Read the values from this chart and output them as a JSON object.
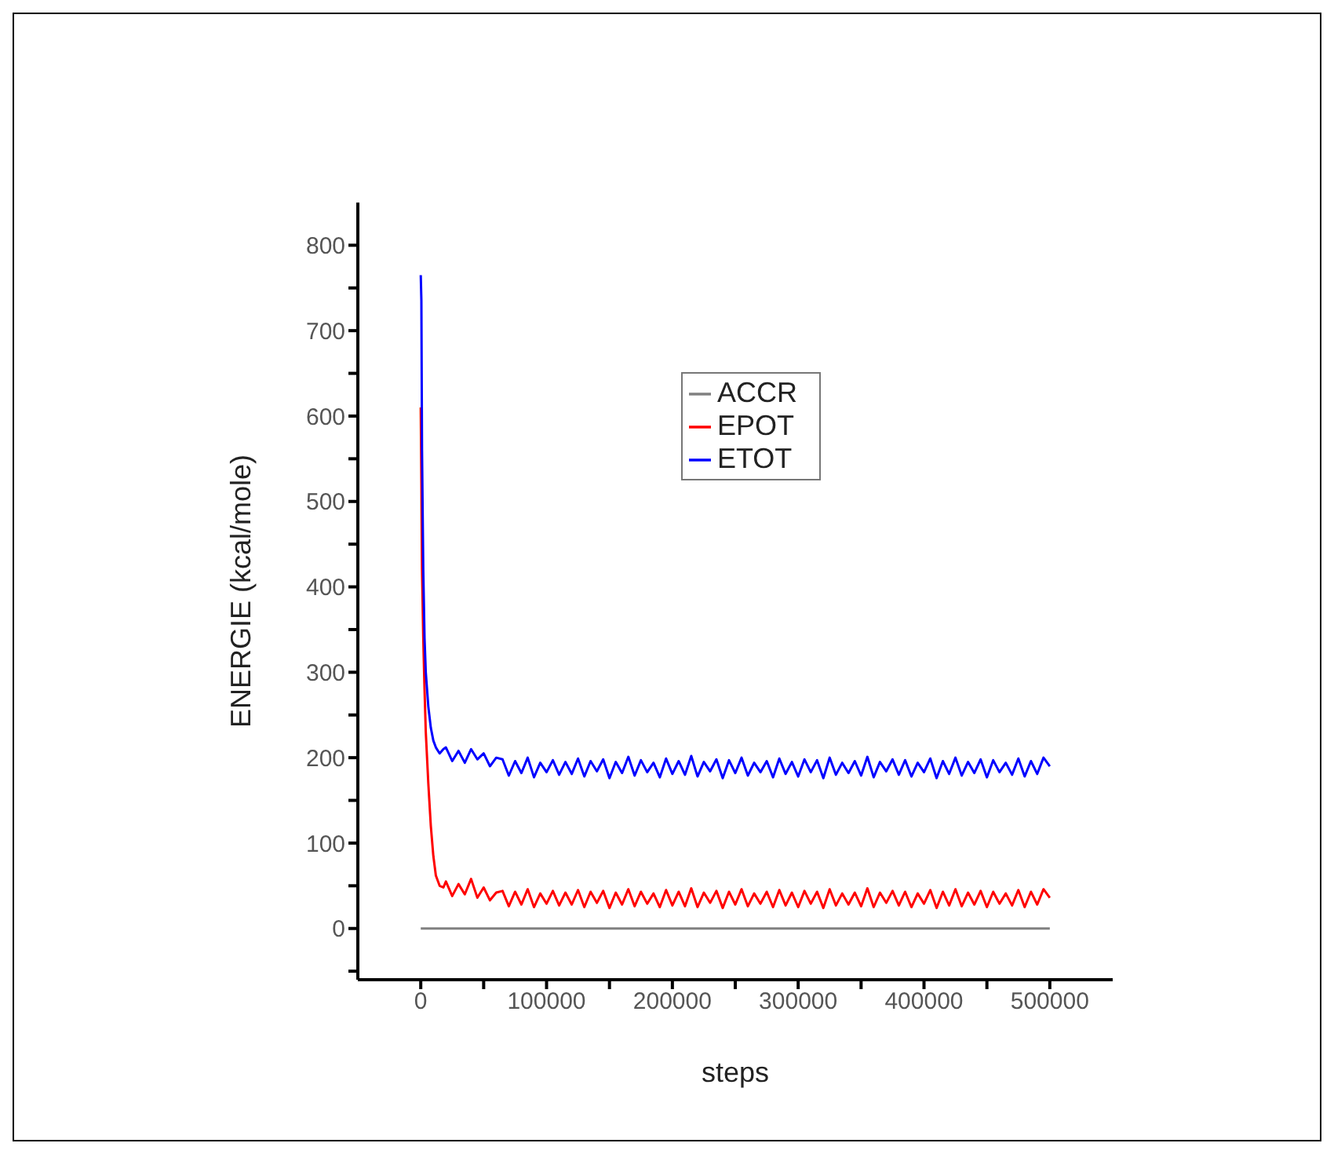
{
  "chart_data": {
    "type": "line",
    "xlabel": "steps",
    "ylabel": "ENERGIE (kcal/mole)",
    "xlim": [
      -50000,
      550000
    ],
    "xticks": [
      0,
      {
        "value": 50000,
        "label": null
      },
      100000,
      {
        "value": 150000,
        "label": null
      },
      200000,
      {
        "value": 250000,
        "label": null
      },
      300000,
      {
        "value": 350000,
        "label": null
      },
      400000,
      {
        "value": 450000,
        "label": null
      },
      500000
    ],
    "ylim": [
      -60,
      850
    ],
    "yticks": [
      {
        "value": -50,
        "label": null
      },
      0,
      {
        "value": 50,
        "label": null
      },
      100,
      {
        "value": 150,
        "label": null
      },
      200,
      {
        "value": 250,
        "label": null
      },
      300,
      {
        "value": 350,
        "label": null
      },
      400,
      {
        "value": 450,
        "label": null
      },
      500,
      {
        "value": 550,
        "label": null
      },
      600,
      {
        "value": 650,
        "label": null
      },
      700,
      {
        "value": 750,
        "label": null
      },
      800
    ],
    "grid": false,
    "legend": "top",
    "marker": "none",
    "line_style": "solid",
    "x": [
      0,
      500,
      1000,
      2000,
      3000,
      4000,
      6000,
      8000,
      10000,
      12000,
      15000,
      18000,
      20000,
      25000,
      30000,
      35000,
      40000,
      45000,
      50000,
      55000,
      60000,
      65000,
      70000,
      75000,
      80000,
      85000,
      90000,
      95000,
      100000,
      105000,
      110000,
      115000,
      120000,
      125000,
      130000,
      135000,
      140000,
      145000,
      150000,
      155000,
      160000,
      165000,
      170000,
      175000,
      180000,
      185000,
      190000,
      195000,
      200000,
      205000,
      210000,
      215000,
      220000,
      225000,
      230000,
      235000,
      240000,
      245000,
      250000,
      255000,
      260000,
      265000,
      270000,
      275000,
      280000,
      285000,
      290000,
      295000,
      300000,
      305000,
      310000,
      315000,
      320000,
      325000,
      330000,
      335000,
      340000,
      345000,
      350000,
      355000,
      360000,
      365000,
      370000,
      375000,
      380000,
      385000,
      390000,
      395000,
      400000,
      405000,
      410000,
      415000,
      420000,
      425000,
      430000,
      435000,
      440000,
      445000,
      450000,
      455000,
      460000,
      465000,
      470000,
      475000,
      480000,
      485000,
      490000,
      495000,
      500000
    ],
    "series": [
      {
        "name": "ACCR",
        "color": "#808080",
        "x": [
          0,
          500000
        ],
        "values": [
          0,
          0
        ]
      },
      {
        "name": "EPOT",
        "color": "#ff0000",
        "values": [
          610,
          520,
          420,
          340,
          280,
          230,
          170,
          120,
          85,
          62,
          50,
          48,
          55,
          38,
          52,
          40,
          58,
          36,
          48,
          33,
          42,
          44,
          26,
          43,
          28,
          46,
          25,
          41,
          29,
          44,
          27,
          42,
          28,
          45,
          25,
          43,
          30,
          44,
          24,
          42,
          28,
          46,
          26,
          43,
          29,
          41,
          25,
          45,
          27,
          43,
          26,
          47,
          25,
          42,
          30,
          44,
          24,
          43,
          28,
          46,
          26,
          41,
          29,
          43,
          25,
          45,
          27,
          42,
          25,
          44,
          29,
          43,
          24,
          46,
          27,
          41,
          28,
          42,
          26,
          47,
          25,
          42,
          30,
          44,
          27,
          43,
          25,
          41,
          29,
          45,
          24,
          43,
          27,
          46,
          26,
          42,
          28,
          44,
          25,
          43,
          29,
          41,
          27,
          45,
          25,
          43,
          28,
          46,
          36
        ]
      },
      {
        "name": "ETOT",
        "color": "#0000ff",
        "values": [
          765,
          735,
          560,
          420,
          340,
          300,
          260,
          235,
          220,
          212,
          205,
          210,
          212,
          196,
          208,
          194,
          210,
          198,
          205,
          190,
          200,
          198,
          179,
          196,
          182,
          200,
          177,
          194,
          183,
          197,
          180,
          195,
          181,
          199,
          178,
          196,
          184,
          198,
          176,
          195,
          182,
          201,
          179,
          197,
          183,
          194,
          177,
          199,
          181,
          196,
          180,
          202,
          178,
          195,
          184,
          198,
          176,
          197,
          182,
          200,
          179,
          194,
          183,
          196,
          177,
          199,
          181,
          195,
          178,
          198,
          183,
          197,
          176,
          200,
          180,
          194,
          182,
          196,
          179,
          201,
          177,
          195,
          184,
          198,
          180,
          197,
          178,
          194,
          183,
          199,
          176,
          196,
          181,
          200,
          179,
          195,
          182,
          198,
          177,
          197,
          183,
          194,
          180,
          199,
          178,
          196,
          181,
          200,
          190
        ]
      }
    ]
  }
}
